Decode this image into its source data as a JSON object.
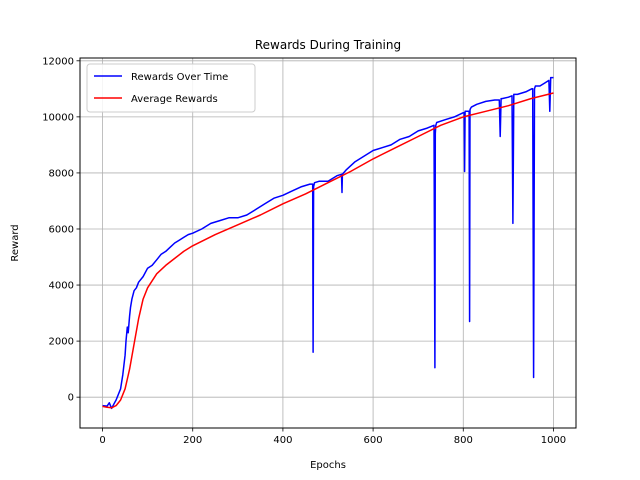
{
  "chart_data": {
    "type": "line",
    "title": "Rewards During Training",
    "xlabel": "Epochs",
    "ylabel": "Reward",
    "xlim": [
      -50,
      1050
    ],
    "ylim": [
      -1100,
      12100
    ],
    "x_ticks": [
      0,
      200,
      400,
      600,
      800,
      1000
    ],
    "y_ticks": [
      0,
      2000,
      4000,
      6000,
      8000,
      10000,
      12000
    ],
    "grid": true,
    "legend_position": "top-left",
    "series": [
      {
        "name": "Rewards Over Time",
        "color": "#0000ff",
        "x": [
          0,
          10,
          15,
          20,
          25,
          30,
          40,
          45,
          50,
          52,
          55,
          57,
          60,
          62,
          65,
          70,
          75,
          80,
          90,
          100,
          110,
          120,
          130,
          140,
          150,
          160,
          170,
          180,
          190,
          200,
          220,
          240,
          260,
          280,
          300,
          320,
          340,
          360,
          380,
          400,
          420,
          440,
          460,
          466,
          467,
          468,
          470,
          480,
          500,
          520,
          530,
          531,
          532,
          540,
          560,
          580,
          600,
          620,
          640,
          660,
          680,
          700,
          720,
          735,
          737,
          738,
          739,
          741,
          760,
          780,
          800,
          802,
          803,
          804,
          806,
          810,
          813,
          814,
          815,
          816,
          818,
          830,
          850,
          870,
          880,
          882,
          884,
          886,
          900,
          908,
          910,
          912,
          920,
          940,
          952,
          954,
          956,
          958,
          960,
          970,
          980,
          990,
          992,
          994,
          996,
          1000
        ],
        "y": [
          -300,
          -320,
          -200,
          -400,
          -250,
          -100,
          300,
          800,
          1500,
          2000,
          2500,
          2300,
          2900,
          3200,
          3500,
          3800,
          3900,
          4100,
          4300,
          4600,
          4700,
          4900,
          5100,
          5200,
          5350,
          5500,
          5600,
          5700,
          5800,
          5850,
          6000,
          6200,
          6300,
          6400,
          6400,
          6500,
          6700,
          6900,
          7100,
          7200,
          7350,
          7500,
          7600,
          7600,
          1600,
          7500,
          7650,
          7700,
          7700,
          7900,
          7950,
          7300,
          7950,
          8100,
          8400,
          8600,
          8800,
          8900,
          9000,
          9200,
          9300,
          9500,
          9600,
          9700,
          1050,
          9400,
          9700,
          9800,
          9900,
          10000,
          10150,
          10150,
          8050,
          10200,
          10200,
          10200,
          10200,
          2700,
          10250,
          10300,
          10350,
          10450,
          10550,
          10600,
          10600,
          9300,
          10650,
          10650,
          10700,
          10750,
          6200,
          10800,
          10800,
          10900,
          11000,
          11000,
          700,
          11000,
          11100,
          11100,
          11200,
          11300,
          10200,
          11400,
          11400,
          11400
        ]
      },
      {
        "name": "Average Rewards",
        "color": "#ff0000",
        "x": [
          0,
          10,
          20,
          30,
          40,
          50,
          60,
          70,
          80,
          90,
          100,
          120,
          140,
          160,
          180,
          200,
          250,
          300,
          350,
          400,
          450,
          500,
          550,
          600,
          650,
          700,
          750,
          800,
          850,
          900,
          950,
          1000
        ],
        "y": [
          -330,
          -360,
          -380,
          -300,
          -100,
          300,
          1000,
          1900,
          2800,
          3500,
          3900,
          4400,
          4700,
          4950,
          5200,
          5400,
          5800,
          6150,
          6500,
          6900,
          7250,
          7650,
          8050,
          8500,
          8900,
          9300,
          9700,
          10000,
          10200,
          10400,
          10650,
          10850
        ]
      }
    ]
  }
}
